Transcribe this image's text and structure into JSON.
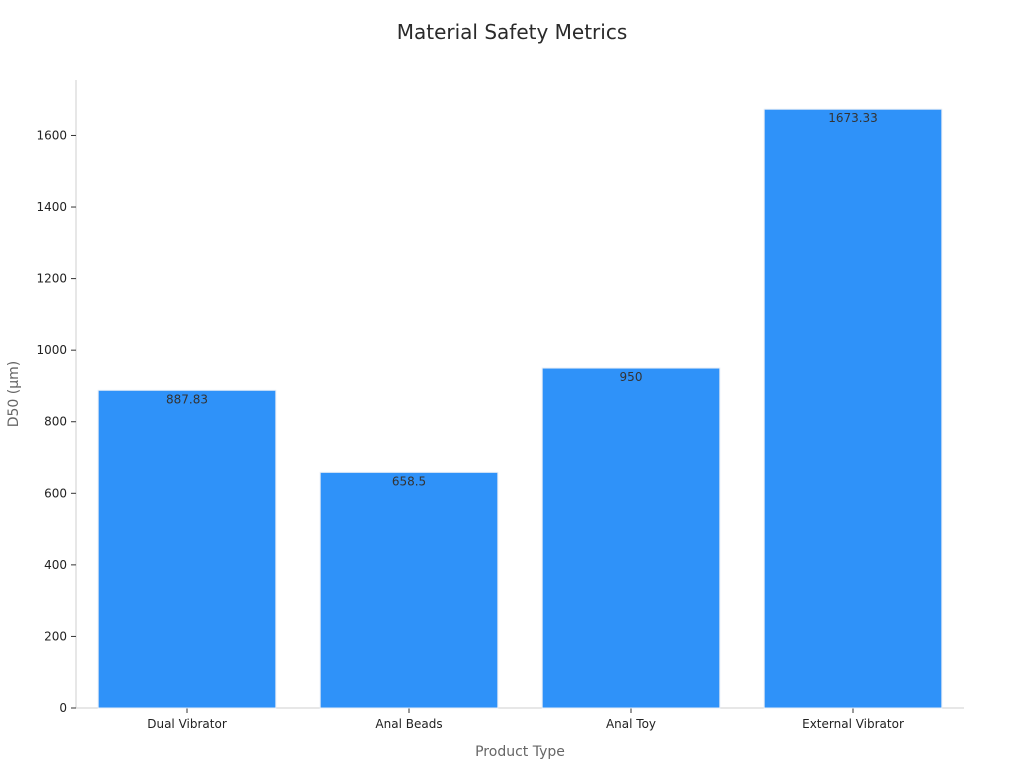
{
  "chart_data": {
    "type": "bar",
    "title": "Material Safety Metrics",
    "xlabel": "Product Type",
    "ylabel": "D50 (μm)",
    "categories": [
      "Dual Vibrator",
      "Anal Beads",
      "Anal Toy",
      "External Vibrator"
    ],
    "values": [
      887.83,
      658.5,
      950,
      1673.33
    ],
    "data_labels": [
      "887.83",
      "658.5",
      "950",
      "1673.33"
    ],
    "ylim": [
      0,
      1755
    ],
    "yticks": [
      0,
      200,
      400,
      600,
      800,
      1000,
      1200,
      1400,
      1600
    ],
    "grid": false,
    "legend": false,
    "colors": {
      "bar": "#2f92f9",
      "axis": "#cfcfcf"
    }
  }
}
